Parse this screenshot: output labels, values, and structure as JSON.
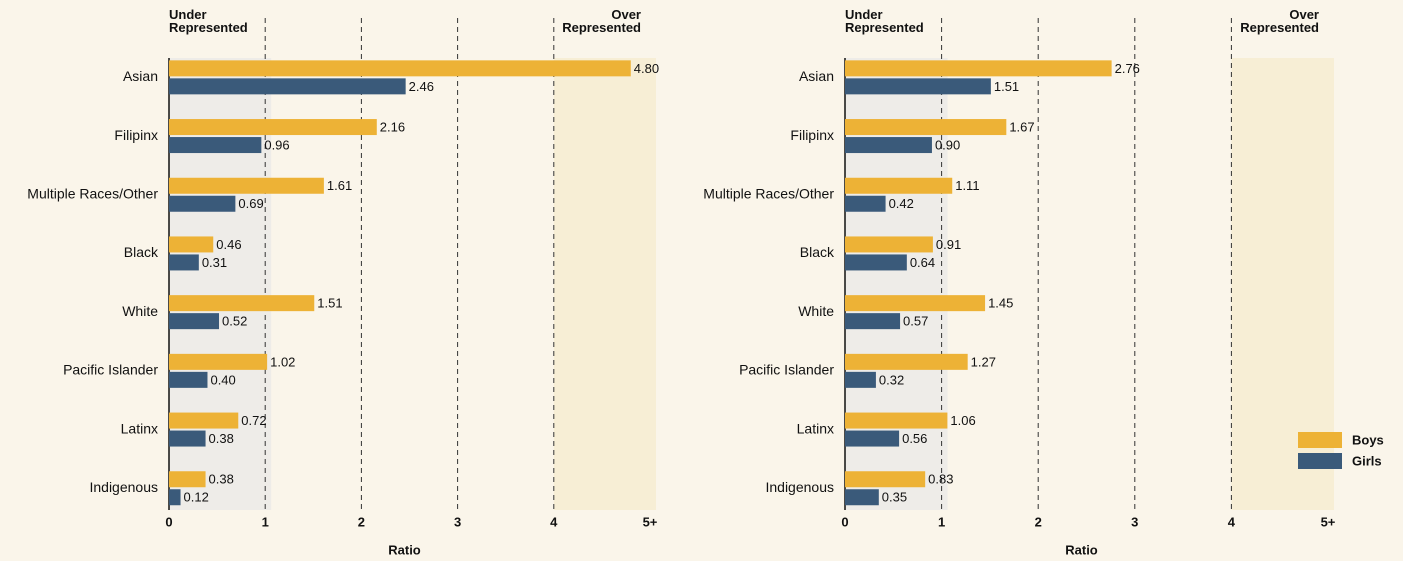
{
  "chart_data": [
    {
      "type": "barh",
      "categories": [
        "Asian",
        "Filipinx",
        "Multiple Races/Other",
        "Black",
        "White",
        "Pacific Islander",
        "Latinx",
        "Indigenous"
      ],
      "series": [
        {
          "name": "Boys",
          "color": "#edb236",
          "values": [
            4.8,
            2.16,
            1.61,
            0.46,
            1.51,
            1.02,
            0.72,
            0.38
          ],
          "value_labels": [
            "4.80",
            "2.16",
            "1.61",
            "0.46",
            "1.51",
            "1.02",
            "0.72",
            "0.38"
          ]
        },
        {
          "name": "Girls",
          "color": "#3a5a7a",
          "values": [
            2.46,
            0.96,
            0.69,
            0.31,
            0.52,
            0.4,
            0.38,
            0.12
          ],
          "value_labels": [
            "2.46",
            "0.96",
            "0.69",
            "0.31",
            "0.52",
            "0.40",
            "0.38",
            "0.12"
          ]
        }
      ],
      "xlim": [
        0,
        5
      ],
      "xticks": [
        0,
        1,
        2,
        3,
        4,
        {
          "value": 5,
          "label": "5+"
        }
      ],
      "x_label": "Ratio",
      "grid": true,
      "legend": false,
      "bands": [
        {
          "from": 0,
          "to": 1,
          "label": "Under Represented",
          "color": "#eeece8"
        },
        {
          "from": 4,
          "to": 5,
          "label": "Over Represented",
          "color": "#f7eed5"
        }
      ]
    },
    {
      "type": "barh",
      "categories": [
        "Asian",
        "Filipinx",
        "Multiple Races/Other",
        "Black",
        "White",
        "Pacific Islander",
        "Latinx",
        "Indigenous"
      ],
      "series": [
        {
          "name": "Boys",
          "color": "#edb236",
          "values": [
            2.76,
            1.67,
            1.11,
            0.91,
            1.45,
            1.27,
            1.06,
            0.83
          ],
          "value_labels": [
            "2.76",
            "1.67",
            "1.11",
            "0.91",
            "1.45",
            "1.27",
            "1.06",
            "0.83"
          ]
        },
        {
          "name": "Girls",
          "color": "#3a5a7a",
          "values": [
            1.51,
            0.9,
            0.42,
            0.64,
            0.57,
            0.32,
            0.56,
            0.35
          ],
          "value_labels": [
            "1.51",
            "0.90",
            "0.42",
            "0.64",
            "0.57",
            "0.32",
            "0.56",
            "0.35"
          ]
        }
      ],
      "xlim": [
        0,
        5
      ],
      "xticks": [
        0,
        1,
        2,
        3,
        4,
        {
          "value": 5,
          "label": "5+"
        }
      ],
      "x_label": "Ratio",
      "grid": true,
      "legend": "lower right",
      "bands": [
        {
          "from": 0,
          "to": 1,
          "label": "Under Represented",
          "color": "#eeece8"
        },
        {
          "from": 4,
          "to": 5,
          "label": "Over Represented",
          "color": "#f7eed5"
        }
      ]
    }
  ]
}
